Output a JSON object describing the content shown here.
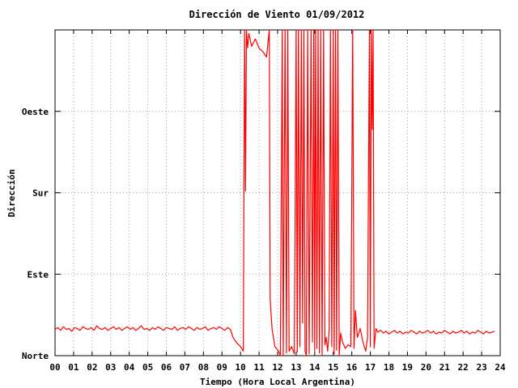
{
  "chart_data": {
    "type": "line",
    "title": "Dirección de Viento 01/09/2012",
    "xlabel": "Tiempo (Hora Local Argentina)",
    "ylabel": "Dirección",
    "xlim": [
      0,
      24
    ],
    "ylim": [
      0,
      360
    ],
    "grid": true,
    "x_ticks": [
      {
        "value": 0,
        "label": "00"
      },
      {
        "value": 1,
        "label": "01"
      },
      {
        "value": 2,
        "label": "02"
      },
      {
        "value": 3,
        "label": "03"
      },
      {
        "value": 4,
        "label": "04"
      },
      {
        "value": 5,
        "label": "05"
      },
      {
        "value": 6,
        "label": "06"
      },
      {
        "value": 7,
        "label": "07"
      },
      {
        "value": 8,
        "label": "08"
      },
      {
        "value": 9,
        "label": "09"
      },
      {
        "value": 10,
        "label": "10"
      },
      {
        "value": 11,
        "label": "11"
      },
      {
        "value": 12,
        "label": "12"
      },
      {
        "value": 13,
        "label": "13"
      },
      {
        "value": 14,
        "label": "14"
      },
      {
        "value": 15,
        "label": "15"
      },
      {
        "value": 16,
        "label": "16"
      },
      {
        "value": 17,
        "label": "17"
      },
      {
        "value": 18,
        "label": "18"
      },
      {
        "value": 19,
        "label": "19"
      },
      {
        "value": 20,
        "label": "20"
      },
      {
        "value": 21,
        "label": "21"
      },
      {
        "value": 22,
        "label": "22"
      },
      {
        "value": 23,
        "label": "23"
      },
      {
        "value": 24,
        "label": "24"
      }
    ],
    "y_ticks": [
      {
        "value": 0,
        "label": "Norte"
      },
      {
        "value": 90,
        "label": "Este"
      },
      {
        "value": 180,
        "label": "Sur"
      },
      {
        "value": 270,
        "label": "Oeste"
      }
    ],
    "series": [
      {
        "color": "#ff0000",
        "points": [
          [
            0.0,
            29
          ],
          [
            0.15,
            31
          ],
          [
            0.3,
            28
          ],
          [
            0.45,
            32
          ],
          [
            0.6,
            29
          ],
          [
            0.75,
            30
          ],
          [
            0.9,
            27
          ],
          [
            1.05,
            31
          ],
          [
            1.2,
            30
          ],
          [
            1.35,
            28
          ],
          [
            1.5,
            32
          ],
          [
            1.65,
            30
          ],
          [
            1.8,
            29
          ],
          [
            1.95,
            31
          ],
          [
            2.1,
            28
          ],
          [
            2.25,
            33
          ],
          [
            2.4,
            30
          ],
          [
            2.55,
            29
          ],
          [
            2.7,
            31
          ],
          [
            2.85,
            28
          ],
          [
            3.0,
            30
          ],
          [
            3.15,
            32
          ],
          [
            3.3,
            29
          ],
          [
            3.45,
            31
          ],
          [
            3.6,
            28
          ],
          [
            3.75,
            30
          ],
          [
            3.9,
            32
          ],
          [
            4.05,
            29
          ],
          [
            4.2,
            31
          ],
          [
            4.35,
            28
          ],
          [
            4.5,
            30
          ],
          [
            4.65,
            33
          ],
          [
            4.8,
            29
          ],
          [
            4.95,
            30
          ],
          [
            5.1,
            28
          ],
          [
            5.25,
            31
          ],
          [
            5.4,
            29
          ],
          [
            5.55,
            32
          ],
          [
            5.7,
            30
          ],
          [
            5.85,
            28
          ],
          [
            6.0,
            31
          ],
          [
            6.15,
            30
          ],
          [
            6.3,
            29
          ],
          [
            6.45,
            32
          ],
          [
            6.6,
            28
          ],
          [
            6.75,
            30
          ],
          [
            6.9,
            31
          ],
          [
            7.05,
            29
          ],
          [
            7.2,
            32
          ],
          [
            7.35,
            30
          ],
          [
            7.5,
            28
          ],
          [
            7.65,
            31
          ],
          [
            7.8,
            29
          ],
          [
            7.95,
            30
          ],
          [
            8.1,
            32
          ],
          [
            8.25,
            28
          ],
          [
            8.4,
            30
          ],
          [
            8.55,
            31
          ],
          [
            8.7,
            29
          ],
          [
            8.85,
            32
          ],
          [
            9.0,
            30
          ],
          [
            9.15,
            28
          ],
          [
            9.3,
            31
          ],
          [
            9.45,
            29
          ],
          [
            9.6,
            20
          ],
          [
            9.8,
            14
          ],
          [
            10.0,
            10
          ],
          [
            10.15,
            5
          ],
          [
            10.22,
            360
          ],
          [
            10.27,
            182
          ],
          [
            10.32,
            360
          ],
          [
            10.38,
            340
          ],
          [
            10.45,
            356
          ],
          [
            10.6,
            342
          ],
          [
            10.8,
            350
          ],
          [
            11.0,
            340
          ],
          [
            11.2,
            336
          ],
          [
            11.4,
            330
          ],
          [
            11.55,
            360
          ],
          [
            11.6,
            62
          ],
          [
            11.7,
            30
          ],
          [
            11.85,
            10
          ],
          [
            12.05,
            5
          ],
          [
            12.15,
            0
          ],
          [
            12.25,
            360
          ],
          [
            12.3,
            0
          ],
          [
            12.4,
            360
          ],
          [
            12.48,
            3
          ],
          [
            12.55,
            360
          ],
          [
            12.62,
            5
          ],
          [
            12.75,
            10
          ],
          [
            12.9,
            2
          ],
          [
            13.0,
            360
          ],
          [
            13.06,
            4
          ],
          [
            13.12,
            360
          ],
          [
            13.2,
            10
          ],
          [
            13.28,
            360
          ],
          [
            13.35,
            36
          ],
          [
            13.42,
            360
          ],
          [
            13.48,
            5
          ],
          [
            13.55,
            0
          ],
          [
            13.62,
            360
          ],
          [
            13.7,
            2
          ],
          [
            13.8,
            360
          ],
          [
            13.88,
            15
          ],
          [
            13.95,
            360
          ],
          [
            14.0,
            5
          ],
          [
            14.05,
            360
          ],
          [
            14.12,
            8
          ],
          [
            14.18,
            360
          ],
          [
            14.25,
            3
          ],
          [
            14.32,
            360
          ],
          [
            14.4,
            0
          ],
          [
            14.48,
            360
          ],
          [
            14.55,
            12
          ],
          [
            14.62,
            20
          ],
          [
            14.7,
            5
          ],
          [
            14.78,
            30
          ],
          [
            14.85,
            360
          ],
          [
            14.92,
            10
          ],
          [
            15.0,
            360
          ],
          [
            15.05,
            2
          ],
          [
            15.12,
            360
          ],
          [
            15.18,
            6
          ],
          [
            15.25,
            360
          ],
          [
            15.32,
            0
          ],
          [
            15.4,
            25
          ],
          [
            15.5,
            15
          ],
          [
            15.65,
            8
          ],
          [
            15.8,
            12
          ],
          [
            15.95,
            10
          ],
          [
            16.05,
            360
          ],
          [
            16.12,
            8
          ],
          [
            16.2,
            50
          ],
          [
            16.3,
            20
          ],
          [
            16.45,
            30
          ],
          [
            16.6,
            15
          ],
          [
            16.75,
            5
          ],
          [
            16.85,
            20
          ],
          [
            16.95,
            360
          ],
          [
            17.0,
            10
          ],
          [
            17.05,
            360
          ],
          [
            17.1,
            250
          ],
          [
            17.15,
            360
          ],
          [
            17.2,
            8
          ],
          [
            17.3,
            30
          ],
          [
            17.4,
            26
          ],
          [
            17.55,
            28
          ],
          [
            17.7,
            25
          ],
          [
            17.85,
            27
          ],
          [
            18.0,
            24
          ],
          [
            18.15,
            26
          ],
          [
            18.3,
            28
          ],
          [
            18.45,
            25
          ],
          [
            18.6,
            27
          ],
          [
            18.75,
            24
          ],
          [
            18.9,
            26
          ],
          [
            19.05,
            25
          ],
          [
            19.2,
            28
          ],
          [
            19.35,
            26
          ],
          [
            19.5,
            24
          ],
          [
            19.65,
            27
          ],
          [
            19.8,
            25
          ],
          [
            19.95,
            26
          ],
          [
            20.1,
            28
          ],
          [
            20.25,
            25
          ],
          [
            20.4,
            27
          ],
          [
            20.55,
            24
          ],
          [
            20.7,
            26
          ],
          [
            20.85,
            25
          ],
          [
            21.0,
            28
          ],
          [
            21.15,
            26
          ],
          [
            21.3,
            24
          ],
          [
            21.45,
            27
          ],
          [
            21.6,
            25
          ],
          [
            21.75,
            26
          ],
          [
            21.9,
            28
          ],
          [
            22.05,
            25
          ],
          [
            22.2,
            27
          ],
          [
            22.35,
            24
          ],
          [
            22.5,
            26
          ],
          [
            22.65,
            25
          ],
          [
            22.8,
            28
          ],
          [
            22.95,
            26
          ],
          [
            23.1,
            24
          ],
          [
            23.25,
            27
          ],
          [
            23.4,
            25
          ],
          [
            23.55,
            26
          ],
          [
            23.7,
            27
          ]
        ]
      }
    ]
  }
}
